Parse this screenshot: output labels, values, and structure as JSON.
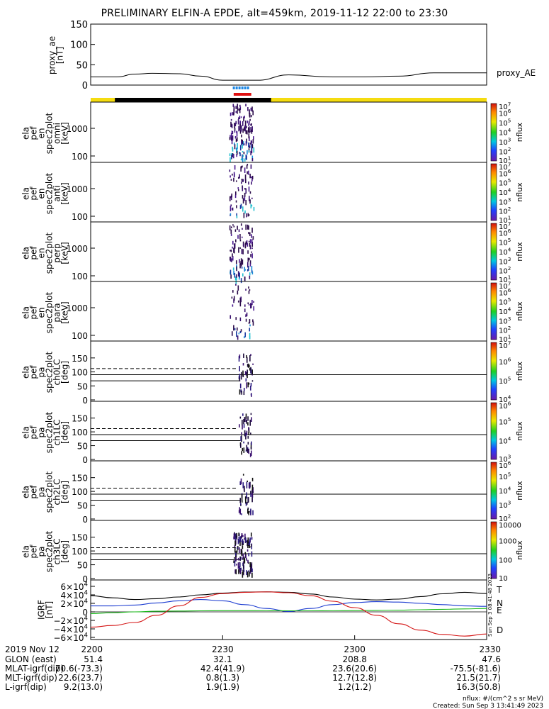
{
  "title": "PRELIMINARY ELFIN-A EPDE, alt=459km, 2019-11-12 22:00 to 23:30",
  "colors": {
    "yellow": "#f5dc10",
    "black_bar": "#000000",
    "blue_mark": "#1e88e5",
    "red_mark": "#e01010",
    "trace_T": "#000000",
    "trace_N": "#1a3ad0",
    "trace_E": "#18b818",
    "trace_D": "#d41414"
  },
  "chart_data": [
    {
      "id": "proxy_ae",
      "type": "line",
      "ylabel": [
        "proxy_ae",
        "[nT]"
      ],
      "ylim": [
        0,
        150
      ],
      "yticks": [
        "150",
        "100",
        "50",
        "0"
      ],
      "legend": "proxy_AE",
      "x_minutes": [
        0,
        6,
        10,
        14,
        20,
        25,
        30,
        38,
        45,
        55,
        62,
        70,
        78,
        90
      ],
      "values": [
        20,
        20,
        27,
        29,
        28,
        22,
        12,
        12,
        25,
        20,
        20,
        22,
        30,
        30
      ]
    },
    {
      "id": "spectra",
      "type": "heatmap",
      "panels": [
        {
          "ylabel": [
            "ela",
            "pef",
            "en",
            "spec2plot",
            "omni",
            "[keV]"
          ],
          "yticks": [
            "1000",
            "100"
          ],
          "cbar_ticks": [
            "10^7",
            "10^6",
            "10^5",
            "10^4",
            "10^3",
            "10^2",
            "10^1"
          ],
          "cbar_label": "nflux"
        },
        {
          "ylabel": [
            "ela",
            "pef",
            "en",
            "spec2plot",
            "anti",
            "[keV]"
          ],
          "yticks": [
            "1000",
            "100"
          ],
          "cbar_ticks": [
            "10^7",
            "10^6",
            "10^5",
            "10^4",
            "10^3",
            "10^2",
            "10^1"
          ],
          "cbar_label": "nflux"
        },
        {
          "ylabel": [
            "ela",
            "pef",
            "en",
            "spec2plot",
            "perp",
            "[keV]"
          ],
          "yticks": [
            "1000",
            "100"
          ],
          "cbar_ticks": [
            "10^7",
            "10^6",
            "10^5",
            "10^4",
            "10^3",
            "10^2",
            "10^1"
          ],
          "cbar_label": "nflux"
        },
        {
          "ylabel": [
            "ela",
            "pef",
            "en",
            "spec2plot",
            "para",
            "[keV]"
          ],
          "yticks": [
            "1000",
            "100"
          ],
          "cbar_ticks": [
            "10^7",
            "10^6",
            "10^5",
            "10^4",
            "10^3",
            "10^2",
            "10^1"
          ],
          "cbar_label": "nflux"
        }
      ]
    },
    {
      "id": "pitch_angle",
      "type": "heatmap",
      "ylim": [
        0,
        180
      ],
      "yticks": [
        "150",
        "100",
        "50",
        "0"
      ],
      "loss_cone_deg": 68,
      "anti_loss_cone_deg": 112,
      "ninety_deg": 90,
      "panels": [
        {
          "ylabel": [
            "ela",
            "pef",
            "pa",
            "spec2plot",
            "ch0LC",
            "[deg]"
          ],
          "cbar_ticks": [
            "10^7",
            "10^6",
            "10^5",
            "10^4"
          ],
          "cbar_label": "nflux"
        },
        {
          "ylabel": [
            "ela",
            "pef",
            "pa",
            "spec2plot",
            "ch1LC",
            "[deg]"
          ],
          "cbar_ticks": [
            "10^6",
            "10^5",
            "10^4",
            "10^3"
          ],
          "cbar_label": "nflux"
        },
        {
          "ylabel": [
            "ela",
            "pef",
            "pa",
            "spec2plot",
            "ch2LC",
            "[deg]"
          ],
          "cbar_ticks": [
            "10^6",
            "10^5",
            "10^4",
            "10^3",
            "10^2"
          ],
          "cbar_label": "nflux"
        },
        {
          "ylabel": [
            "ela",
            "pef",
            "pa",
            "spec2plot",
            "ch3LC",
            "[deg]"
          ],
          "cbar_ticks": [
            "10000",
            "1000",
            "100",
            "10"
          ],
          "cbar_label": "nflux"
        }
      ]
    },
    {
      "id": "igrf",
      "type": "line",
      "ylabel": [
        "IGRF",
        "[nT]"
      ],
      "ylim": [
        -65000,
        65000
      ],
      "yticks": [
        "6×10^4",
        "4×10^4",
        "2×10^4",
        "0",
        "−2×10^4",
        "−4×10^4",
        "−6×10^4"
      ],
      "x_minutes": [
        0,
        5,
        10,
        15,
        20,
        25,
        30,
        35,
        40,
        45,
        50,
        55,
        60,
        65,
        70,
        75,
        80,
        85,
        90
      ],
      "series": [
        {
          "name": "T",
          "color": "#000000",
          "values": [
            38000,
            33000,
            29000,
            31000,
            35000,
            40000,
            44000,
            46500,
            47000,
            46000,
            42000,
            35000,
            30000,
            28000,
            30000,
            36000,
            42500,
            46000,
            43000
          ]
        },
        {
          "name": "N",
          "color": "#1a3ad0",
          "values": [
            14000,
            14000,
            16000,
            21000,
            26000,
            29000,
            26000,
            17000,
            8000,
            1000,
            8000,
            17000,
            22000,
            24000,
            23000,
            20000,
            17000,
            14000,
            13000
          ]
        },
        {
          "name": "E",
          "color": "#18b818",
          "values": [
            -4000,
            -2000,
            0,
            1500,
            2000,
            2500,
            2800,
            2800,
            2700,
            2500,
            2500,
            2700,
            3000,
            3500,
            4000,
            5000,
            6000,
            7000,
            8000
          ]
        },
        {
          "name": "D",
          "color": "#d41414",
          "values": [
            -36000,
            -32000,
            -25000,
            -8000,
            14000,
            34000,
            43000,
            46000,
            47000,
            45000,
            38000,
            25000,
            10000,
            -8000,
            -28000,
            -43000,
            -53000,
            -57000,
            -52000
          ]
        }
      ]
    }
  ],
  "x_axis": {
    "ticks": [
      "2200",
      "2230",
      "2300",
      "2330"
    ],
    "rows": [
      {
        "label": "2019 Nov 12",
        "values": [
          "2200",
          "2230",
          "2300",
          "2330"
        ]
      },
      {
        "label": "GLON (east)",
        "values": [
          "51.4",
          "32.1",
          "208.8",
          "47.6"
        ]
      },
      {
        "label": "MLAT-igrf(dip)",
        "values": [
          "70.6(-73.3)",
          "42.4(41.9)",
          "23.6(20.6)",
          "-75.5(-81.6)"
        ]
      },
      {
        "label": "MLT-igrf(dip)",
        "values": [
          "22.6(23.7)",
          "0.8(1.3)",
          "12.7(12.8)",
          "21.5(21.7)"
        ]
      },
      {
        "label": "L-igrf(dip)",
        "values": [
          "9.2(13.0)",
          "1.9(1.9)",
          "1.2(1.2)",
          "16.3(50.8)"
        ]
      }
    ]
  },
  "footer": {
    "units": "nflux: #/(cm^2 s sr MeV)",
    "created": "Created: Sun Sep  3 13:41:49 2023",
    "side_stamp": "Sun Sep  3 08:41:48 2023"
  }
}
